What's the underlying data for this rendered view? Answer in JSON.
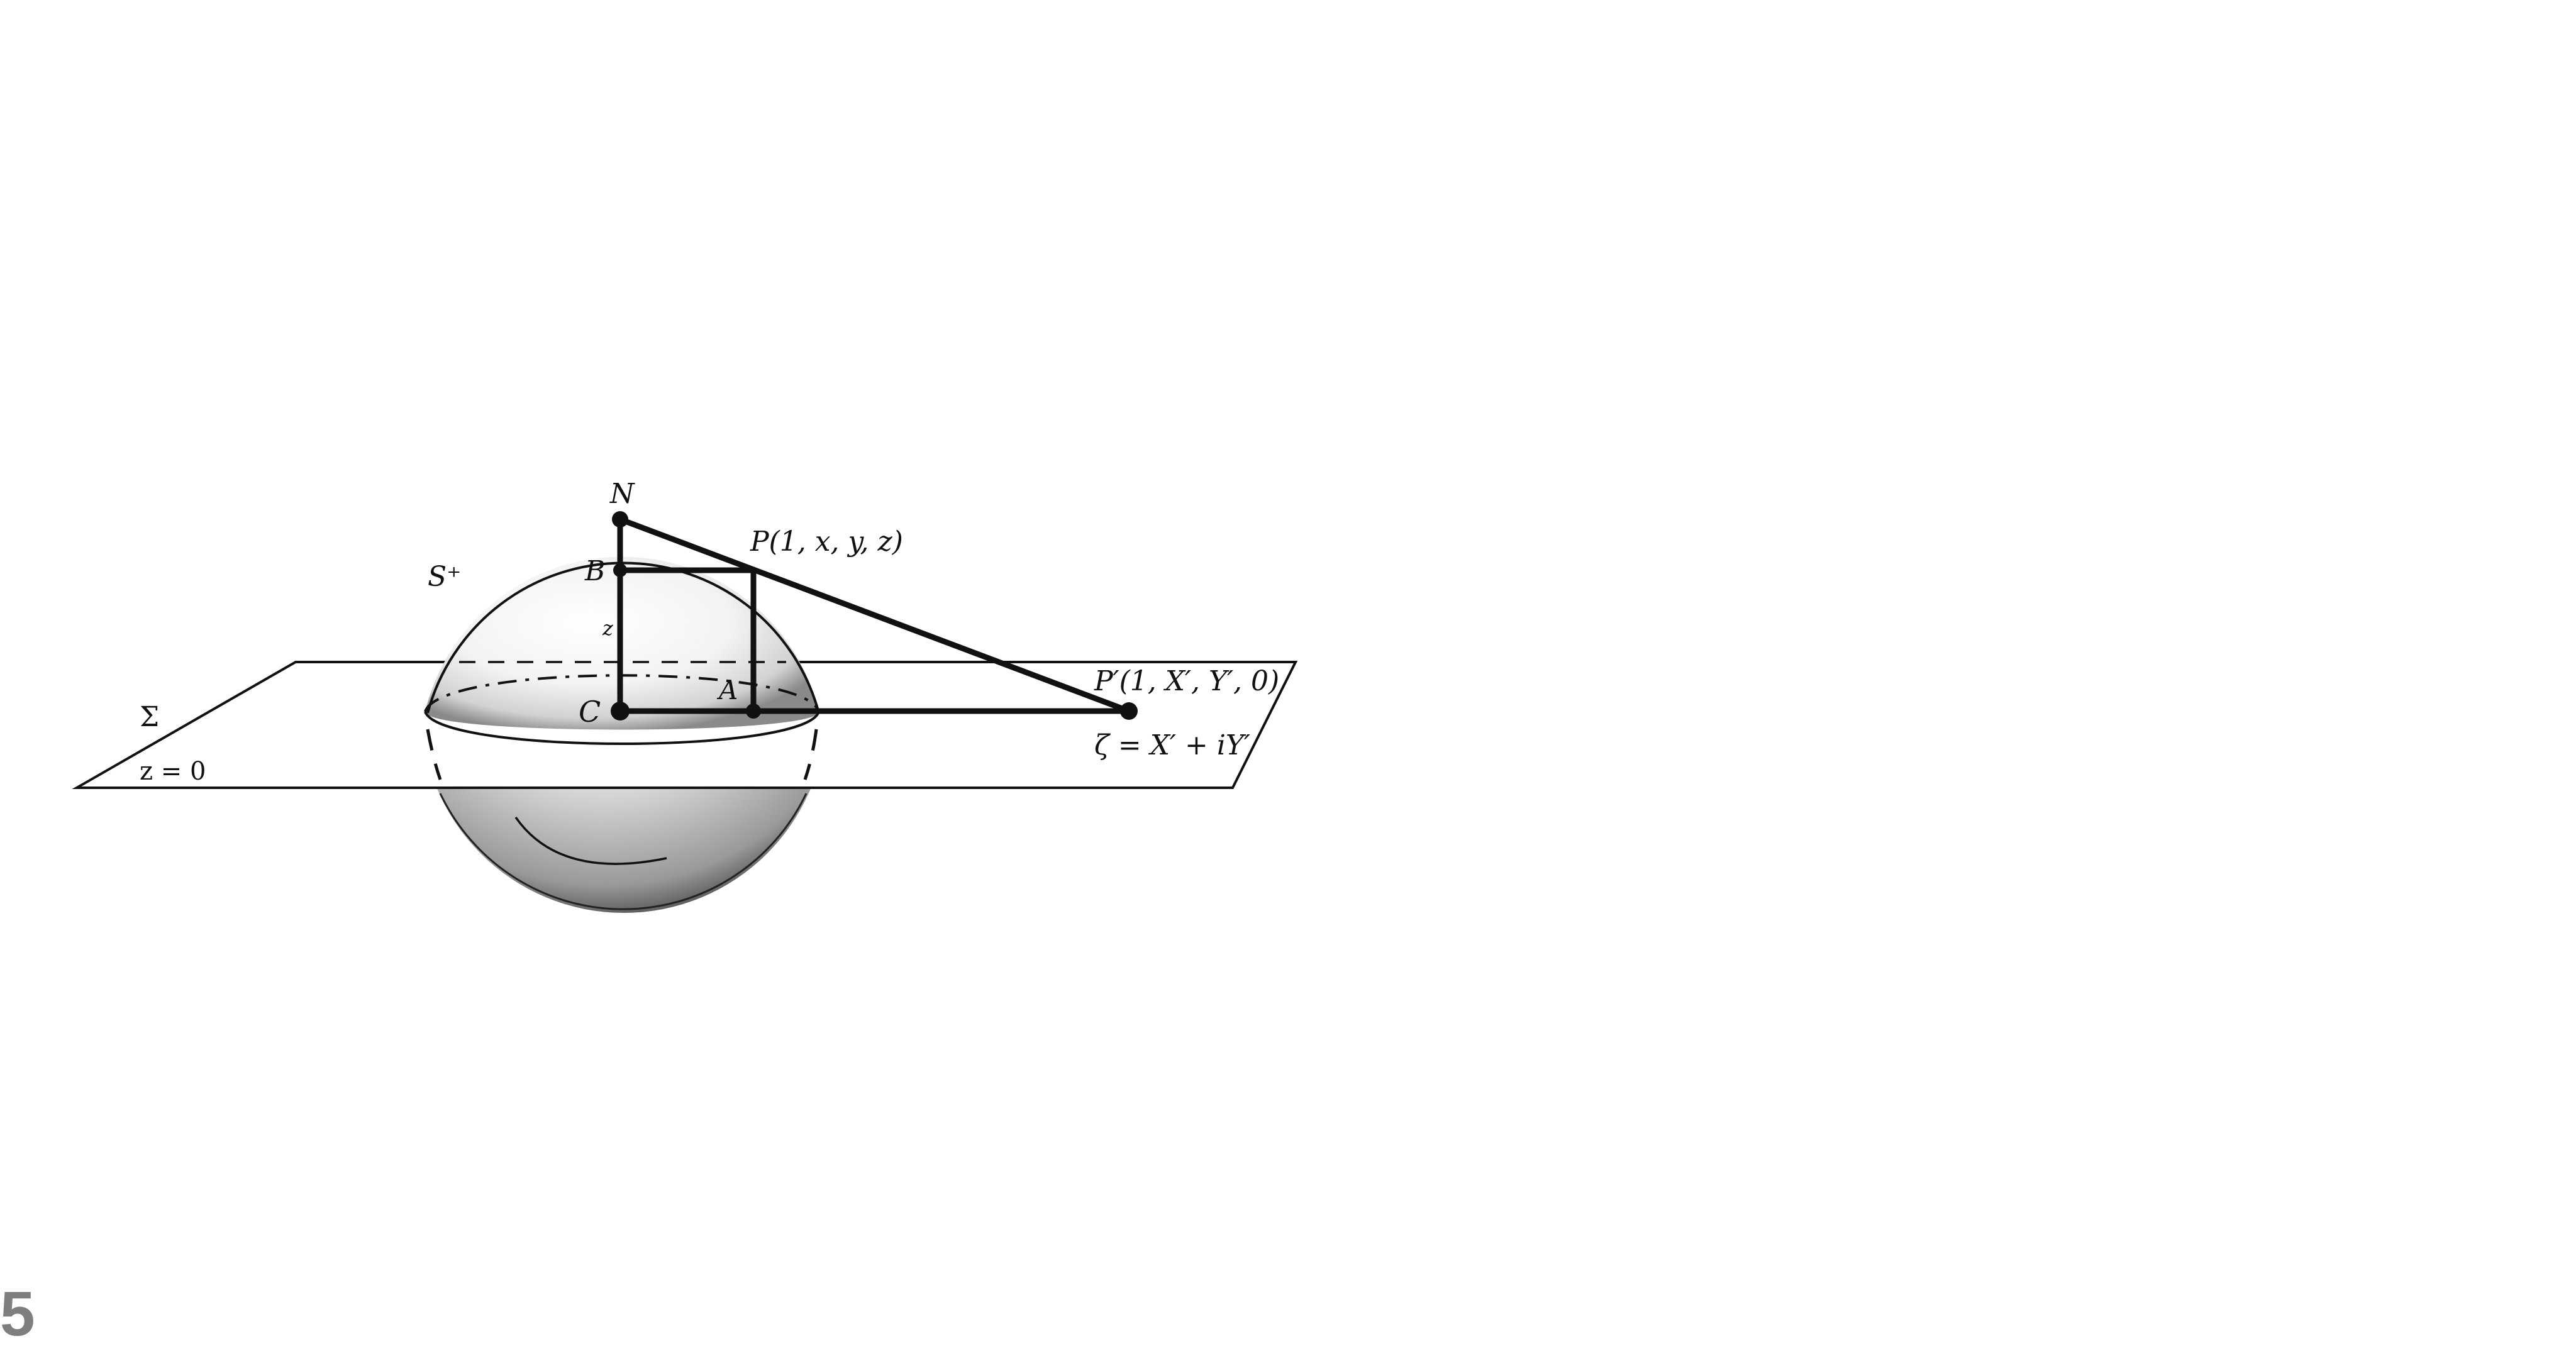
{
  "diagram": {
    "labels": {
      "north_pole": "N",
      "point_p": "P(1, x, y, z)",
      "point_b": "B",
      "sphere": "S⁺",
      "height_z": "z",
      "plane": "Σ",
      "plane_equation": "z = 0",
      "center": "C",
      "point_a": "A",
      "projection_point": "P′(1, X′, Y′, 0)",
      "complex_coordinate": "ζ = X′ + iY′"
    },
    "colors": {
      "ink": "#111111",
      "sphere_fill": "#e9e9e9",
      "slide_number": "#7f7f7f"
    }
  },
  "footer": {
    "slide_number": "5"
  }
}
